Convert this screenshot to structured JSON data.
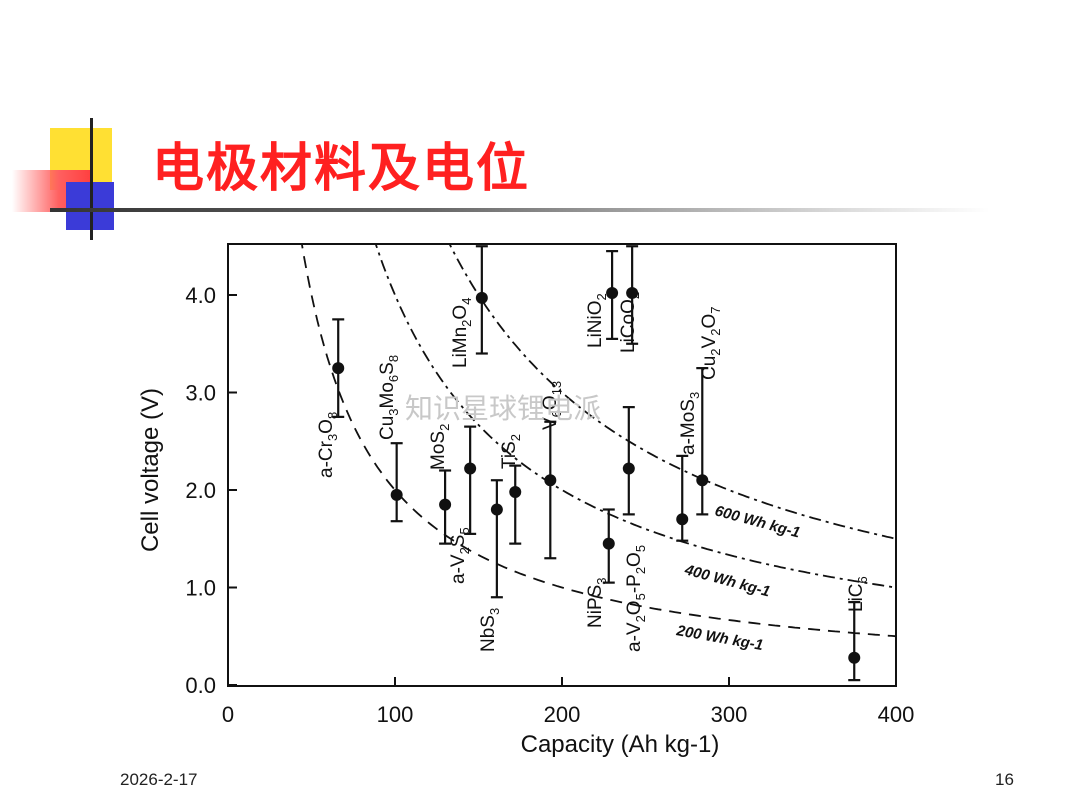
{
  "slide": {
    "title": "电极材料及电位",
    "date": "2026-2-17",
    "page_number": "16",
    "watermark": "知识星球锂电派"
  },
  "chart_data": {
    "type": "scatter",
    "title": "",
    "xlabel": "Capacity  (Ah kg-1)",
    "ylabel": "Cell voltage (V)",
    "xlim": [
      0,
      400
    ],
    "ylim": [
      0,
      4.6
    ],
    "xticks": [
      0,
      100,
      200,
      300,
      400
    ],
    "yticks": [
      0.0,
      1.0,
      2.0,
      3.0,
      4.0
    ],
    "xtick_labels": [
      "0",
      "100",
      "200",
      "300",
      "400"
    ],
    "ytick_labels": [
      "0.0",
      "1.0",
      "2.0",
      "3.0",
      "4.0"
    ],
    "energy_curves": [
      {
        "label": "200 Wh kg-1",
        "energy": 200,
        "style": "dashed"
      },
      {
        "label": "400 Wh kg-1",
        "energy": 400,
        "style": "dash-dot"
      },
      {
        "label": "600 Wh kg-1",
        "energy": 600,
        "style": "dash-dot"
      }
    ],
    "points": [
      {
        "name": "a-Cr3O8",
        "parts": [
          [
            "a-Cr",
            0
          ],
          [
            "3",
            1
          ],
          [
            "O",
            0
          ],
          [
            "8",
            1
          ]
        ],
        "x": 66,
        "y": 3.25,
        "ylow": 2.75,
        "yhigh": 3.75
      },
      {
        "name": "Cu3Mo6S8",
        "parts": [
          [
            "Cu",
            0
          ],
          [
            "3",
            1
          ],
          [
            "Mo",
            0
          ],
          [
            "6",
            1
          ],
          [
            "S",
            0
          ],
          [
            "8",
            1
          ]
        ],
        "x": 101,
        "y": 1.95,
        "ylow": 1.68,
        "yhigh": 2.48
      },
      {
        "name": "MoS2",
        "parts": [
          [
            "MoS",
            0
          ],
          [
            "2",
            1
          ]
        ],
        "x": 130,
        "y": 1.85,
        "ylow": 1.45,
        "yhigh": 2.2
      },
      {
        "name": "a-V2S5",
        "parts": [
          [
            "a-V",
            0
          ],
          [
            "2",
            1
          ],
          [
            "S",
            0
          ],
          [
            "5",
            1
          ]
        ],
        "x": 145,
        "y": 2.22,
        "ylow": 1.55,
        "yhigh": 2.65
      },
      {
        "name": "LiMn2O4",
        "parts": [
          [
            "LiMn",
            0
          ],
          [
            "2",
            1
          ],
          [
            "O",
            0
          ],
          [
            "4",
            1
          ]
        ],
        "x": 152,
        "y": 3.97,
        "ylow": 3.4,
        "yhigh": 4.5
      },
      {
        "name": "NbS3",
        "parts": [
          [
            "NbS",
            0
          ],
          [
            "3",
            1
          ]
        ],
        "x": 161,
        "y": 1.8,
        "ylow": 0.9,
        "yhigh": 2.1
      },
      {
        "name": "TiS2",
        "parts": [
          [
            "TiS",
            0
          ],
          [
            "2",
            1
          ]
        ],
        "x": 172,
        "y": 1.98,
        "ylow": 1.45,
        "yhigh": 2.25
      },
      {
        "name": "V6O13",
        "parts": [
          [
            "V",
            0
          ],
          [
            "6",
            1
          ],
          [
            "O",
            0
          ],
          [
            "13",
            1
          ]
        ],
        "x": 193,
        "y": 2.1,
        "ylow": 1.3,
        "yhigh": 2.7
      },
      {
        "name": "NiPS3",
        "parts": [
          [
            "NiPS",
            0
          ],
          [
            "3",
            1
          ]
        ],
        "x": 228,
        "y": 1.45,
        "ylow": 1.05,
        "yhigh": 1.8
      },
      {
        "name": "LiNiO2",
        "parts": [
          [
            "LiNiO",
            0
          ],
          [
            "2",
            1
          ]
        ],
        "x": 230,
        "y": 4.02,
        "ylow": 3.55,
        "yhigh": 4.45
      },
      {
        "name": "a-V2O5-P2O5",
        "parts": [
          [
            "a-V",
            0
          ],
          [
            "2",
            1
          ],
          [
            "O",
            0
          ],
          [
            "5",
            1
          ],
          [
            "-P",
            0
          ],
          [
            "2",
            1
          ],
          [
            "O",
            0
          ],
          [
            "5",
            1
          ]
        ],
        "x": 240,
        "y": 2.22,
        "ylow": 1.75,
        "yhigh": 2.85
      },
      {
        "name": "LiCoO2",
        "parts": [
          [
            "LiCoO",
            0
          ],
          [
            "2",
            1
          ]
        ],
        "x": 242,
        "y": 4.02,
        "ylow": 3.5,
        "yhigh": 4.5
      },
      {
        "name": "a-MoS3",
        "parts": [
          [
            "a-MoS",
            0
          ],
          [
            "3",
            1
          ]
        ],
        "x": 272,
        "y": 1.7,
        "ylow": 1.48,
        "yhigh": 2.35
      },
      {
        "name": "Cu2V2O7",
        "parts": [
          [
            "Cu",
            0
          ],
          [
            "2",
            1
          ],
          [
            "V",
            0
          ],
          [
            "2",
            1
          ],
          [
            "O",
            0
          ],
          [
            "7",
            1
          ]
        ],
        "x": 284,
        "y": 2.1,
        "ylow": 1.75,
        "yhigh": 3.25
      },
      {
        "name": "LiC6",
        "parts": [
          [
            "LiC",
            0
          ],
          [
            "6",
            1
          ]
        ],
        "x": 375,
        "y": 0.28,
        "ylow": 0.05,
        "yhigh": 0.85
      }
    ]
  }
}
